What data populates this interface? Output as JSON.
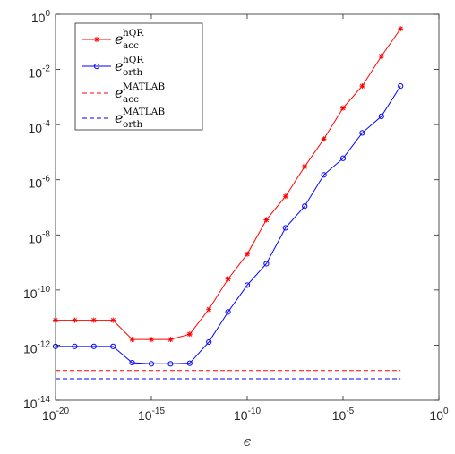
{
  "chart_data": {
    "type": "line",
    "title": "",
    "xlabel": "ϵ",
    "ylabel": "",
    "xscale": "log",
    "yscale": "log",
    "xlim": [
      1e-20,
      1
    ],
    "ylim": [
      1e-14,
      1
    ],
    "x_ticks": [
      {
        "base": "10",
        "exp": "-20",
        "value": 1e-20
      },
      {
        "base": "10",
        "exp": "-15",
        "value": 1e-15
      },
      {
        "base": "10",
        "exp": "-10",
        "value": 1e-10
      },
      {
        "base": "10",
        "exp": "-5",
        "value": 1e-05
      },
      {
        "base": "10",
        "exp": "0",
        "value": 1
      }
    ],
    "y_ticks": [
      {
        "base": "10",
        "exp": "-14",
        "value": 1e-14
      },
      {
        "base": "10",
        "exp": "-12",
        "value": 1e-12
      },
      {
        "base": "10",
        "exp": "-10",
        "value": 1e-10
      },
      {
        "base": "10",
        "exp": "-8",
        "value": 1e-08
      },
      {
        "base": "10",
        "exp": "-6",
        "value": 1e-06
      },
      {
        "base": "10",
        "exp": "-4",
        "value": 0.0001
      },
      {
        "base": "10",
        "exp": "-2",
        "value": 0.01
      },
      {
        "base": "10",
        "exp": "0",
        "value": 1
      }
    ],
    "grid": false,
    "legend_position": "top-left",
    "x": [
      1e-20,
      1e-19,
      1e-18,
      1e-17,
      1e-16,
      1e-15,
      1e-14,
      1e-13,
      1e-12,
      1e-11,
      1e-10,
      1e-09,
      1e-08,
      1e-07,
      1e-06,
      1e-05,
      0.0001,
      0.001,
      0.01
    ],
    "series": [
      {
        "sym": "e",
        "sup": "hQR",
        "sub": "acc",
        "color": "#ff0000",
        "line": "solid",
        "marker": "asterisk",
        "values": [
          8e-12,
          8e-12,
          8e-12,
          8e-12,
          1.6e-12,
          1.6e-12,
          1.6e-12,
          2.5e-12,
          2e-11,
          2.5e-10,
          2e-09,
          3.5e-08,
          2.5e-07,
          3e-06,
          3e-05,
          0.0004,
          0.0025,
          0.03,
          0.3
        ]
      },
      {
        "sym": "e",
        "sup": "hQR",
        "sub": "orth",
        "color": "#0000ff",
        "line": "solid",
        "marker": "circle",
        "values": [
          9e-13,
          9e-13,
          9e-13,
          9e-13,
          2.3e-13,
          2.1e-13,
          2.1e-13,
          2.2e-13,
          1.3e-12,
          1.6e-11,
          1.5e-10,
          9e-10,
          1.8e-08,
          1.1e-07,
          1.5e-06,
          6e-06,
          5e-05,
          0.0002,
          0.0025
        ]
      },
      {
        "sym": "e",
        "sup": "MATLAB",
        "sub": "acc",
        "color": "#ff0000",
        "line": "dashed",
        "marker": "none",
        "values": [
          1.2e-13,
          1.2e-13,
          1.2e-13,
          1.2e-13,
          1.2e-13,
          1.2e-13,
          1.2e-13,
          1.2e-13,
          1.2e-13,
          1.2e-13,
          1.2e-13,
          1.2e-13,
          1.2e-13,
          1.2e-13,
          1.2e-13,
          1.2e-13,
          1.2e-13,
          1.2e-13,
          1.2e-13
        ]
      },
      {
        "sym": "e",
        "sup": "MATLAB",
        "sub": "orth",
        "color": "#0000ff",
        "line": "dashed",
        "marker": "none",
        "values": [
          6e-14,
          6e-14,
          6e-14,
          6e-14,
          6e-14,
          6e-14,
          6e-14,
          6e-14,
          6e-14,
          6e-14,
          6e-14,
          6e-14,
          6e-14,
          6e-14,
          6e-14,
          6e-14,
          6e-14,
          6e-14,
          6e-14
        ]
      }
    ]
  }
}
